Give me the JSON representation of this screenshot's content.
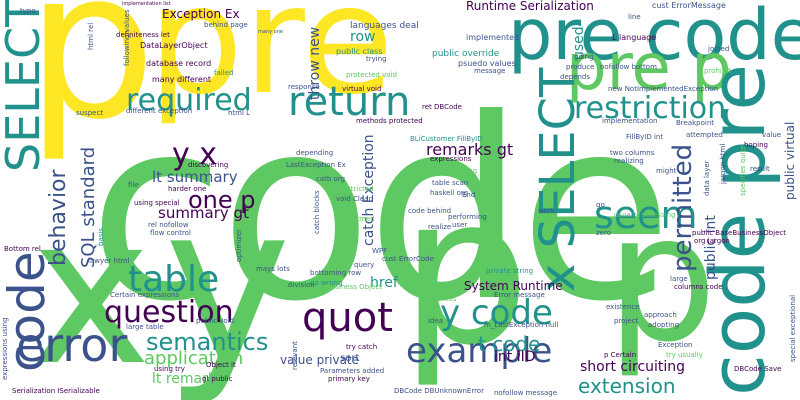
{
  "word_cloud": {
    "colors": {
      "dark_purple": "#440154",
      "blue": "#3b528b",
      "teal": "#21918c",
      "green": "#5ec962",
      "yellow": "#fde725"
    },
    "words": {
      "code_big": "code",
      "p_yellow": "p",
      "pre_yellow": "pre",
      "x_big": "x",
      "y_big": "y",
      "p_lower": "p",
      "p_right": "p",
      "pre_code_top": "pre code",
      "pre_p": "pre p",
      "code_pre_vertical": "code pre",
      "select_left": "SELECT",
      "select_vertical": "SELECT",
      "x_select": "x SELECT",
      "code_left": "code",
      "error": "error",
      "required": "required",
      "return": "return",
      "restriction": "restriction",
      "seem": "seem",
      "table": "table",
      "question": "question",
      "quot": "quot",
      "y_code": "y code",
      "example": "example",
      "permitted": "permitted",
      "semantics": "semantics",
      "application": "application",
      "behavior": "behavior",
      "y_x": "y x",
      "one_p": "one p",
      "lt_summary": "lt summary",
      "summary_gt": "summary gt",
      "sql_standard": "SQL standard",
      "t_code": "t code",
      "int_iid": "int iID",
      "value_private": "value private",
      "short_circuiting": "short circuiting",
      "extension": "extension",
      "remarks_gt": "remarks gt",
      "runtime_serialization": "Runtime Serialization",
      "exception_ex": "Exception Ex",
      "row": "row",
      "href": "href",
      "system_runtime": "System Runtime",
      "throw_new": "throw new",
      "catch_exception": "catch Exception",
      "lt_remarks": "lt remarks",
      "public_int": "public int",
      "public_virtual": "public virtual",
      "used": "used",
      "languages_deal": "languages deal",
      "public_class": "public class",
      "public_override": "public override",
      "psuedo_values": "psuedo values",
      "implemented": "implemented",
      "cust_errormessage": "cust ErrorMessage",
      "t_language": "L language",
      "datalayerobject": "DataLayerObject",
      "database_record": "database record",
      "many_different": "many different",
      "behind_page": "behind page",
      "failed": "failed",
      "response": "response",
      "virtual_void": "virtual void",
      "methods_protected": "methods protected",
      "ret_dbcode": "ret DBCode",
      "blicustomer": "BLiCustomer FillByID",
      "lastexception_ex": "LastException Ex",
      "catb_org": "catb org",
      "table_scan": "table scan",
      "haskell_org": "haskell org",
      "code_behind": "code behind",
      "performing": "performing",
      "expressions": "expressions",
      "something": "something",
      "restricted": "restricted",
      "void_clear": "void Clear",
      "catch_blocks": "catch blocks",
      "performed": "performed",
      "cust_errorcode": "cust ErrorCode",
      "private_string": "private string",
      "error_message": "Error message",
      "bottoming_row": "bottoming row",
      "go_wrong": "go wrong",
      "division": "division",
      "business_object": "Business Object",
      "mays_lots": "mays lots",
      "query": "query",
      "wpf": "WPF",
      "optimizer": "optimizer",
      "parameters_added": "Parameters added",
      "primary_key": "primary key",
      "try_catch": "try catch",
      "sort": "sort",
      "dbcode": "DBCode DBUnknownError",
      "nofollow_message": "nofollow message",
      "large_table": "large table",
      "public_void": "public void",
      "object_it": "Object it",
      "gt_public": "gt public",
      "using_try": "using try",
      "rel_nofollow": "rel nofollow",
      "flow_control": "flow control",
      "harder_one": "harder one",
      "using_special": "using special",
      "discovering": "discovering",
      "file": "file",
      "certain_expressions": "Certain expressions",
      "serialization_iserializable": "Serialization ISerializable",
      "bottom_rel": "Bottom rel",
      "lawyer_html": "lawyer html",
      "public_basebusiness": "public BaseBusinessObject",
      "org_jargon": "org jargon",
      "columns_code": "columns code",
      "existence": "existence",
      "project": "project",
      "approach": "approach",
      "adopting": "adopting",
      "exception": "Exception",
      "p_certain": "p Certain",
      "try_usually": "try usually",
      "dbcode_save": "DBCode Save",
      "two_columns": "two columns",
      "realizing": "realizing",
      "might": "might",
      "result": "result",
      "data_layer": "data layer",
      "hoping": "hoping",
      "attempted": "attempted",
      "breakpoint": "Breakpoint",
      "fillbyid_int": "FillByID int",
      "implementation": "implementation",
      "new_notimplemented": "new NotImplementedException",
      "nofollow_bottom": "nofollow bottom",
      "joined": "joined",
      "prohibit": "prohibit",
      "line": "line",
      "going": "going",
      "produce": "produce",
      "depends": "depends",
      "message": "message",
      "trying": "trying",
      "protected_void": "protected void",
      "html_rel": "html rel",
      "type": "type",
      "definiteness_let": "definiteness let",
      "different_exception": "different exception",
      "suspect": "suspect",
      "html_l": "html L",
      "depending": "depending",
      "work": "work",
      "zero": "zero",
      "user": "user",
      "end": "End",
      "realize": "realize",
      "large": "large",
      "go": "go",
      "idea": "idea",
      "emptiness": "emptiness",
      "m_lastexception": "m_LastException null",
      "relevant": "relevant",
      "usually_accessing": "usually accessing",
      "specifies_quite": "specifies quite",
      "special_exceptional": "special exceptional",
      "value": "value",
      "expressions_using": "expressions using",
      "nowhere": "nowhere",
      "many_one": "many one",
      "following_values": "following values",
      "implementation_list": "implementation list",
      "small_page": "small page",
      "basis": "basis",
      "jargon_html": "jargon html",
      "select_clause": "select clause",
      "pseudo_values": "pseudo values"
    }
  }
}
